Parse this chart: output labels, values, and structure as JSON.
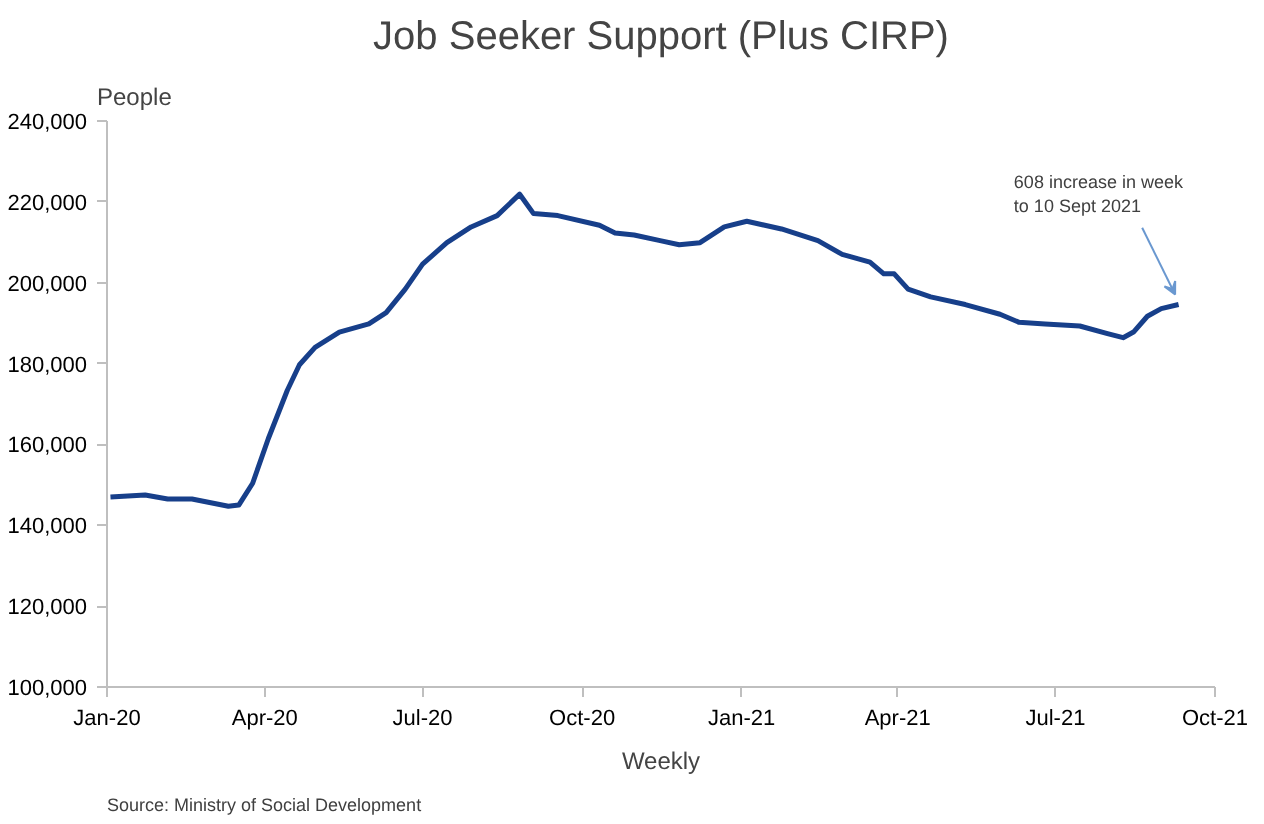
{
  "chart_data": {
    "type": "line",
    "title": "Job Seeker Support (Plus CIRP)",
    "ylabel": "People",
    "xlabel": "Weekly",
    "x": [
      "2020-01-03",
      "2020-01-23",
      "2020-02-05",
      "2020-02-19",
      "2020-03-11",
      "2020-03-17",
      "2020-03-25",
      "2020-04-03",
      "2020-04-14",
      "2020-04-21",
      "2020-04-30",
      "2020-05-14",
      "2020-05-31",
      "2020-06-10",
      "2020-06-21",
      "2020-07-01",
      "2020-07-15",
      "2020-07-29",
      "2020-08-13",
      "2020-08-26",
      "2020-09-03",
      "2020-09-17",
      "2020-10-11",
      "2020-10-20",
      "2020-10-31",
      "2020-11-15",
      "2020-11-26",
      "2020-12-08",
      "2020-12-22",
      "2021-01-04",
      "2021-01-24",
      "2021-02-14",
      "2021-02-28",
      "2021-03-16",
      "2021-03-24",
      "2021-03-30",
      "2021-04-07",
      "2021-04-20",
      "2021-05-10",
      "2021-05-30",
      "2021-06-10",
      "2021-06-25",
      "2021-07-15",
      "2021-07-31",
      "2021-08-09",
      "2021-08-15",
      "2021-08-23",
      "2021-08-31",
      "2021-09-10"
    ],
    "series": [
      {
        "color": "#173f8a",
        "values": [
          147000,
          147500,
          146500,
          146500,
          144700,
          145000,
          150400,
          161400,
          173400,
          179700,
          184000,
          187800,
          189800,
          192600,
          198400,
          204600,
          209900,
          213800,
          216600,
          221900,
          217100,
          216600,
          214200,
          212300,
          211800,
          210400,
          209400,
          209900,
          213800,
          215200,
          213300,
          210400,
          207000,
          205100,
          202200,
          202200,
          198400,
          196500,
          194600,
          192200,
          190200,
          189800,
          189300,
          187400,
          186400,
          187800,
          191700,
          193600,
          194600
        ]
      }
    ],
    "xlim": [
      "2020-01-01",
      "2021-10-01"
    ],
    "xticks": [
      {
        "value": "2020-01-01",
        "label": "Jan-20"
      },
      {
        "value": "2020-04-01",
        "label": "Apr-20"
      },
      {
        "value": "2020-07-01",
        "label": "Jul-20"
      },
      {
        "value": "2020-10-01",
        "label": "Oct-20"
      },
      {
        "value": "2021-01-01",
        "label": "Jan-21"
      },
      {
        "value": "2021-04-01",
        "label": "Apr-21"
      },
      {
        "value": "2021-07-01",
        "label": "Jul-21"
      },
      {
        "value": "2021-10-01",
        "label": "Oct-21"
      }
    ],
    "ylim": [
      100000,
      240000
    ],
    "yticks": [
      {
        "value": 100000,
        "label": "100,000"
      },
      {
        "value": 120000,
        "label": "120,000"
      },
      {
        "value": 140000,
        "label": "140,000"
      },
      {
        "value": 160000,
        "label": "160,000"
      },
      {
        "value": 180000,
        "label": "180,000"
      },
      {
        "value": 200000,
        "label": "200,000"
      },
      {
        "value": 220000,
        "label": "220,000"
      },
      {
        "value": 240000,
        "label": "240,000"
      }
    ],
    "grid": false,
    "line_style": "solid",
    "annotations": [
      {
        "text": "608 increase in week\nto 10 Sept 2021",
        "x": "2021-09-10",
        "y": 194600
      },
      "Source: Ministry of Social Development"
    ]
  }
}
